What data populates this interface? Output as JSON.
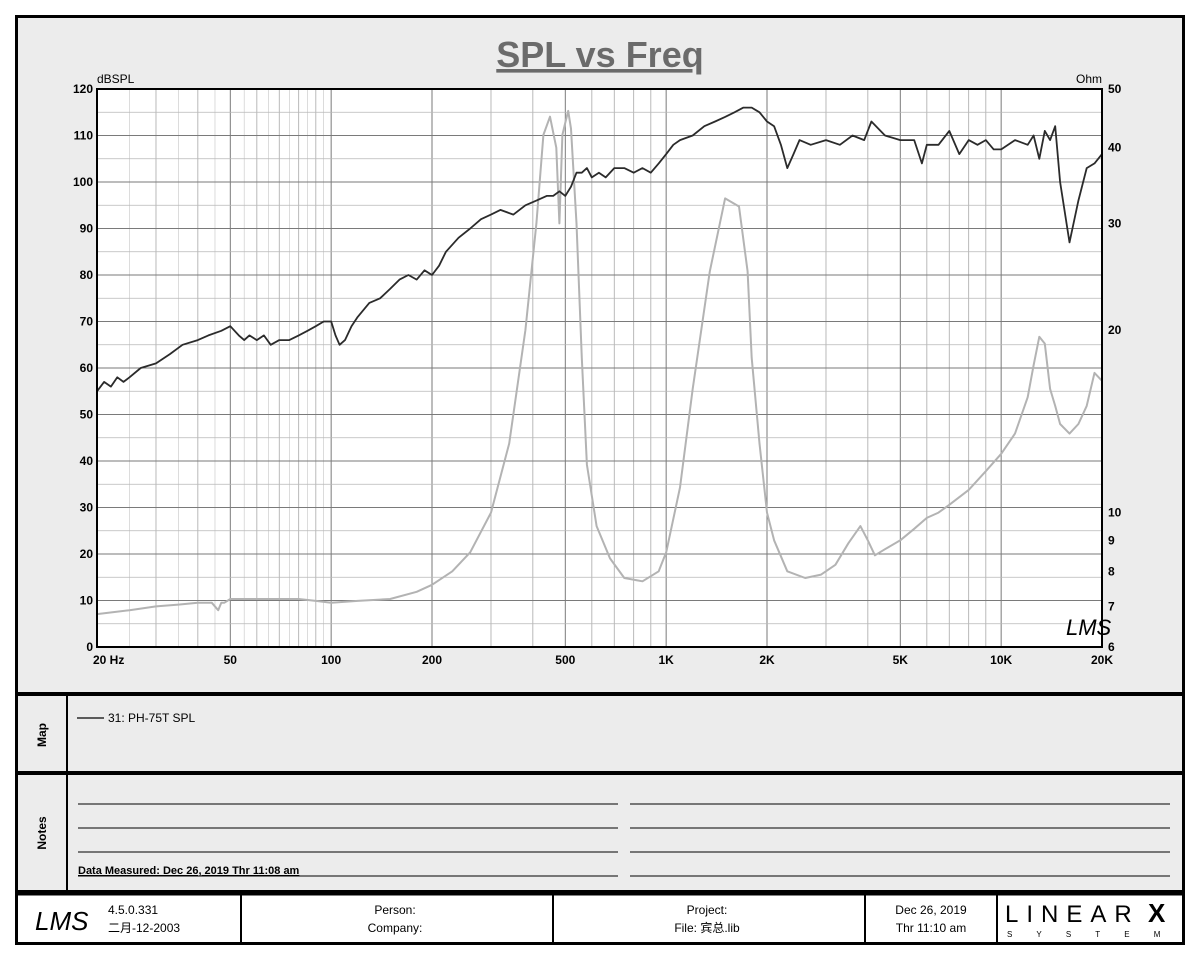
{
  "chart_data": {
    "type": "line",
    "title": "SPL vs Freq",
    "ylabel_left": "dBSPL",
    "ylabel_right": "Ohm",
    "x_scale": "log",
    "xlim": [
      20,
      20000
    ],
    "ylim_left": [
      0,
      120
    ],
    "ylim_right": [
      6,
      50
    ],
    "y_scale_right": "log",
    "grid": true,
    "x_tick_labels": [
      {
        "v": 20,
        "t": "20  Hz"
      },
      {
        "v": 50,
        "t": "50"
      },
      {
        "v": 100,
        "t": "100"
      },
      {
        "v": 200,
        "t": "200"
      },
      {
        "v": 500,
        "t": "500"
      },
      {
        "v": 1000,
        "t": "1K"
      },
      {
        "v": 2000,
        "t": "2K"
      },
      {
        "v": 5000,
        "t": "5K"
      },
      {
        "v": 10000,
        "t": "10K"
      },
      {
        "v": 20000,
        "t": "20K"
      }
    ],
    "y_ticks_left": [
      0,
      10,
      20,
      30,
      40,
      50,
      60,
      70,
      80,
      90,
      100,
      110,
      120
    ],
    "y_ticks_right": [
      6,
      7,
      8,
      9,
      10,
      20,
      30,
      40,
      50
    ],
    "series": [
      {
        "name": "31: PH-75T SPL",
        "color": "#2b2b2b",
        "axis": "left",
        "x": [
          20,
          21,
          22,
          23,
          24,
          25,
          27,
          30,
          33,
          36,
          40,
          43,
          47,
          50,
          53,
          55,
          57,
          60,
          63,
          66,
          70,
          75,
          80,
          85,
          90,
          95,
          100,
          103,
          106,
          110,
          115,
          120,
          130,
          140,
          150,
          160,
          170,
          180,
          190,
          200,
          210,
          220,
          240,
          260,
          280,
          300,
          320,
          350,
          380,
          410,
          440,
          460,
          480,
          500,
          520,
          540,
          560,
          580,
          600,
          630,
          660,
          700,
          750,
          800,
          850,
          900,
          950,
          1000,
          1050,
          1100,
          1200,
          1300,
          1400,
          1500,
          1600,
          1700,
          1800,
          1900,
          2000,
          2100,
          2200,
          2300,
          2400,
          2500,
          2700,
          3000,
          3300,
          3600,
          3900,
          4100,
          4500,
          5000,
          5500,
          5800,
          6000,
          6500,
          7000,
          7500,
          8000,
          8500,
          9000,
          9500,
          10000,
          11000,
          12000,
          12500,
          13000,
          13500,
          14000,
          14500,
          15000,
          16000,
          17000,
          18000,
          19000,
          20000
        ],
        "y": [
          55,
          57,
          56,
          58,
          57,
          58,
          60,
          61,
          63,
          65,
          66,
          67,
          68,
          69,
          67,
          66,
          67,
          66,
          67,
          65,
          66,
          66,
          67,
          68,
          69,
          70,
          70,
          67,
          65,
          66,
          69,
          71,
          74,
          75,
          77,
          79,
          80,
          79,
          81,
          80,
          82,
          85,
          88,
          90,
          92,
          93,
          94,
          93,
          95,
          96,
          97,
          97,
          98,
          97,
          99,
          102,
          102,
          103,
          101,
          102,
          101,
          103,
          103,
          102,
          103,
          102,
          104,
          106,
          108,
          109,
          110,
          112,
          113,
          114,
          115,
          116,
          116,
          115,
          113,
          112,
          108,
          103,
          106,
          109,
          108,
          109,
          108,
          110,
          109,
          113,
          110,
          109,
          109,
          104,
          108,
          108,
          111,
          106,
          109,
          108,
          109,
          107,
          107,
          109,
          108,
          110,
          105,
          111,
          109,
          112,
          100,
          87,
          96,
          103,
          104,
          106
        ]
      },
      {
        "color": "#b3b3b3",
        "axis": "right",
        "x": [
          20,
          25,
          30,
          35,
          40,
          44,
          46,
          47,
          48,
          50,
          55,
          60,
          70,
          80,
          90,
          100,
          120,
          150,
          180,
          200,
          230,
          260,
          300,
          340,
          380,
          410,
          430,
          450,
          470,
          480,
          490,
          500,
          510,
          520,
          540,
          560,
          580,
          620,
          680,
          750,
          850,
          950,
          1000,
          1100,
          1200,
          1350,
          1500,
          1650,
          1750,
          1800,
          1900,
          2000,
          2100,
          2300,
          2600,
          2900,
          3200,
          3500,
          3800,
          4000,
          4200,
          4500,
          5000,
          5500,
          6000,
          6500,
          7000,
          8000,
          9000,
          10000,
          11000,
          12000,
          12500,
          13000,
          13500,
          14000,
          14500,
          15000,
          16000,
          17000,
          18000,
          19000,
          20000
        ],
        "y": [
          6.8,
          6.9,
          7.0,
          7.05,
          7.1,
          7.1,
          6.9,
          7.1,
          7.1,
          7.2,
          7.2,
          7.2,
          7.2,
          7.2,
          7.15,
          7.1,
          7.15,
          7.2,
          7.4,
          7.6,
          8.0,
          8.6,
          10.0,
          13.0,
          20.0,
          30.0,
          42.0,
          45.0,
          40.0,
          30.0,
          42.0,
          44.0,
          46.0,
          43.0,
          30.0,
          18.0,
          12.0,
          9.5,
          8.4,
          7.8,
          7.7,
          8.0,
          8.6,
          11.0,
          16.0,
          25.0,
          33.0,
          32.0,
          25.0,
          18.0,
          13.0,
          10.0,
          9.0,
          8.0,
          7.8,
          7.9,
          8.2,
          8.9,
          9.5,
          9.0,
          8.5,
          8.7,
          9.0,
          9.4,
          9.8,
          10.0,
          10.3,
          10.9,
          11.7,
          12.5,
          13.5,
          15.5,
          17.5,
          19.5,
          19.0,
          16.0,
          15.0,
          14.0,
          13.5,
          14.0,
          15.0,
          17.0,
          16.5
        ]
      }
    ]
  },
  "logo_mark": "LMS",
  "map": {
    "label": "Map",
    "legend_text": "31: PH-75T SPL"
  },
  "notes": {
    "label": "Notes",
    "measured": "Data Measured: Dec 26, 2019  Thr 11:08 am"
  },
  "footer": {
    "logo": "LMS",
    "version": "4.5.0.331",
    "version_date": "二月-12-2003",
    "person": "Person:",
    "company": "Company:",
    "project": "Project:",
    "file": "File: 宾总.lib",
    "date": "Dec 26, 2019",
    "time": "Thr 11:10 am",
    "brand": "LINEAR",
    "brand_x": "X",
    "brand_sub": "S Y S T E M S"
  }
}
